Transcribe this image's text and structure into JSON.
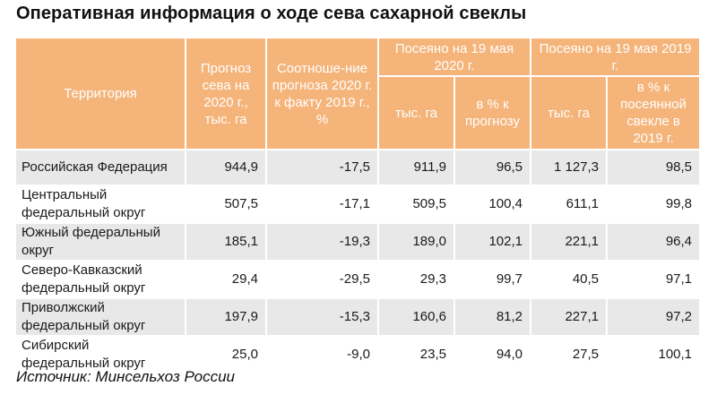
{
  "title": "Оперативная информация о ходе сева сахарной свеклы",
  "colors": {
    "header_bg": "#f4b47a",
    "header_text": "#ffffff",
    "row_alt_bg": "#e8e8e8"
  },
  "table": {
    "headers": {
      "territory": "Территория",
      "forecast": "Прогноз сева на 2020 г., тыс. га",
      "ratio": "Соотноше-ние прогноза 2020 г. к факту 2019 г., %",
      "sown2020": "Посеяно на 19 мая 2020 г.",
      "sown2019": "Посеяно на 19 мая 2019 г.",
      "sub_thous_2020": "тыс. га",
      "sub_pct_2020": "в % к прогнозу",
      "sub_thous_2019": "тыс. га",
      "sub_pct_2019": "в % к посеянной свекле в 2019 г."
    },
    "rows": [
      {
        "territory": "Российская Федерация",
        "forecast": "944,9",
        "ratio": "-17,5",
        "sown2020": "911,9",
        "pct2020": "96,5",
        "sown2019": "1 127,3",
        "pct2019": "98,5"
      },
      {
        "territory": "Центральный федеральный округ",
        "forecast": "507,5",
        "ratio": "-17,1",
        "sown2020": "509,5",
        "pct2020": "100,4",
        "sown2019": "611,1",
        "pct2019": "99,8"
      },
      {
        "territory": "Южный федеральный округ",
        "forecast": "185,1",
        "ratio": "-19,3",
        "sown2020": "189,0",
        "pct2020": "102,1",
        "sown2019": "221,1",
        "pct2019": "96,4"
      },
      {
        "territory": "Северо-Кавказский федеральный округ",
        "forecast": "29,4",
        "ratio": "-29,5",
        "sown2020": "29,3",
        "pct2020": "99,7",
        "sown2019": "40,5",
        "pct2019": "97,1"
      },
      {
        "territory": "Приволжский федеральный округ",
        "forecast": "197,9",
        "ratio": "-15,3",
        "sown2020": "160,6",
        "pct2020": "81,2",
        "sown2019": "227,1",
        "pct2019": "97,2"
      },
      {
        "territory": "Сибирский федеральный округ",
        "forecast": "25,0",
        "ratio": "-9,0",
        "sown2020": "23,5",
        "pct2020": "94,0",
        "sown2019": "27,5",
        "pct2019": "100,1"
      }
    ]
  },
  "source": "Источник: Минсельхоз России"
}
